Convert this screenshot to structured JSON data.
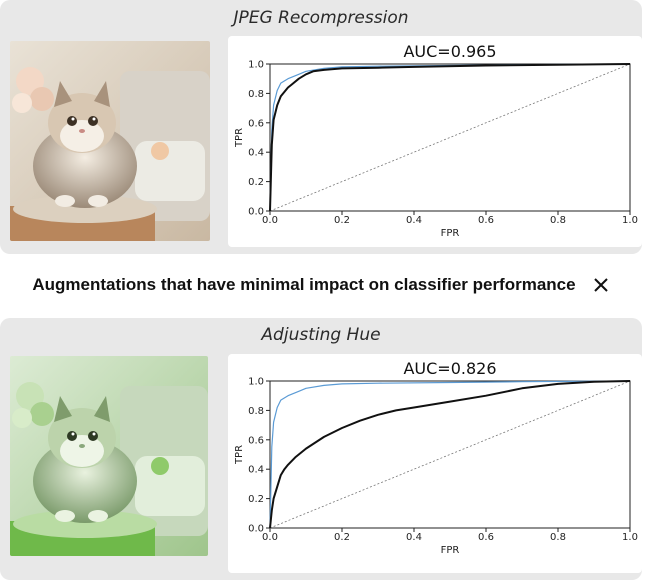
{
  "caption": {
    "text": "Augmentations that have minimal impact on classifier performance",
    "close_icon": "close-icon"
  },
  "panels": [
    {
      "title": "JPEG Recompression",
      "image_tint": "natural",
      "chart": {
        "title": "AUC=0.965",
        "xlabel": "FPR",
        "ylabel": "TPR",
        "xticks": [
          "0.0",
          "0.2",
          "0.4",
          "0.6",
          "0.8",
          "1.0"
        ],
        "yticks": [
          "0.0",
          "0.2",
          "0.4",
          "0.6",
          "0.8",
          "1.0"
        ]
      }
    },
    {
      "title": "Adjusting Hue",
      "image_tint": "green",
      "chart": {
        "title": "AUC=0.826",
        "xlabel": "FPR",
        "ylabel": "TPR",
        "xticks": [
          "0.0",
          "0.2",
          "0.4",
          "0.6",
          "0.8",
          "1.0"
        ],
        "yticks": [
          "0.0",
          "0.2",
          "0.4",
          "0.6",
          "0.8",
          "1.0"
        ]
      }
    }
  ],
  "chart_data": [
    {
      "type": "line",
      "title": "AUC=0.965",
      "xlabel": "FPR",
      "ylabel": "TPR",
      "xlim": [
        0,
        1
      ],
      "ylim": [
        0,
        1
      ],
      "colors": {
        "augmented": "#111111",
        "baseline": "#5b9bd5",
        "chance": "#777777"
      },
      "series": [
        {
          "x": [
            0,
            0.005,
            0.01,
            0.02,
            0.03,
            0.04,
            0.05,
            0.06,
            0.08,
            0.1,
            0.12,
            0.15,
            0.2,
            0.3,
            0.4,
            0.6,
            0.8,
            1.0
          ],
          "y": [
            0,
            0.45,
            0.62,
            0.72,
            0.78,
            0.81,
            0.84,
            0.86,
            0.9,
            0.93,
            0.95,
            0.96,
            0.97,
            0.975,
            0.98,
            0.99,
            0.995,
            1.0
          ]
        },
        {
          "x": [
            0,
            0.005,
            0.01,
            0.02,
            0.03,
            0.05,
            0.08,
            0.1,
            0.15,
            0.2,
            0.3,
            0.5,
            0.7,
            1.0
          ],
          "y": [
            0,
            0.55,
            0.72,
            0.82,
            0.87,
            0.9,
            0.93,
            0.95,
            0.97,
            0.98,
            0.985,
            0.99,
            0.995,
            1.0
          ]
        },
        {
          "x": [
            0,
            1
          ],
          "y": [
            0,
            1
          ]
        }
      ]
    },
    {
      "type": "line",
      "title": "AUC=0.826",
      "xlabel": "FPR",
      "ylabel": "TPR",
      "xlim": [
        0,
        1
      ],
      "ylim": [
        0,
        1
      ],
      "colors": {
        "augmented": "#111111",
        "baseline": "#5b9bd5",
        "chance": "#777777"
      },
      "series": [
        {
          "x": [
            0,
            0.005,
            0.01,
            0.02,
            0.03,
            0.04,
            0.05,
            0.07,
            0.1,
            0.15,
            0.2,
            0.25,
            0.3,
            0.35,
            0.4,
            0.5,
            0.6,
            0.7,
            0.8,
            0.9,
            1.0
          ],
          "y": [
            0,
            0.12,
            0.2,
            0.28,
            0.36,
            0.4,
            0.43,
            0.48,
            0.54,
            0.62,
            0.68,
            0.73,
            0.77,
            0.8,
            0.82,
            0.86,
            0.9,
            0.95,
            0.98,
            0.995,
            1.0
          ]
        },
        {
          "x": [
            0,
            0.005,
            0.01,
            0.02,
            0.03,
            0.05,
            0.08,
            0.1,
            0.15,
            0.2,
            0.3,
            0.5,
            0.7,
            1.0
          ],
          "y": [
            0,
            0.55,
            0.72,
            0.82,
            0.87,
            0.9,
            0.93,
            0.95,
            0.97,
            0.98,
            0.985,
            0.99,
            0.995,
            1.0
          ]
        },
        {
          "x": [
            0,
            1
          ],
          "y": [
            0,
            1
          ]
        }
      ]
    }
  ]
}
